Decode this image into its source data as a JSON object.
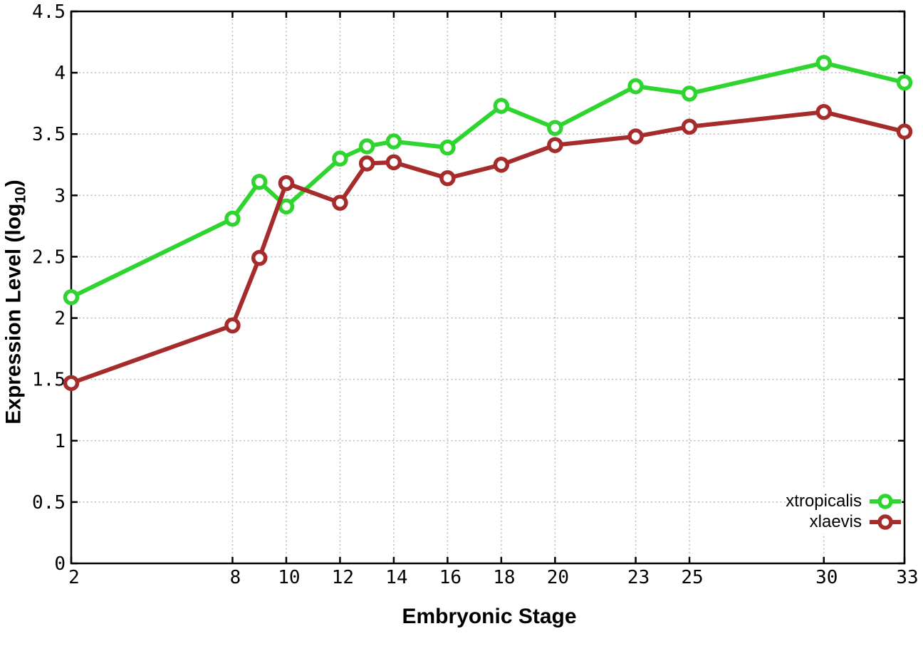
{
  "chart_data": {
    "type": "line",
    "title": "",
    "xlabel": "Embryonic Stage",
    "ylabel": {
      "prefix": "Expression Level (log",
      "sub": "10",
      "suffix": ")"
    },
    "xlim": [
      2,
      33
    ],
    "ylim": [
      0,
      4.5
    ],
    "xticks": [
      2,
      8,
      10,
      12,
      14,
      16,
      18,
      20,
      23,
      25,
      30,
      33
    ],
    "yticks": [
      0,
      0.5,
      1,
      1.5,
      2,
      2.5,
      3,
      3.5,
      4,
      4.5
    ],
    "grid": true,
    "legend_position": "bottom-right",
    "x": [
      2,
      8,
      9,
      10,
      12,
      13,
      14,
      16,
      18,
      20,
      23,
      25,
      30,
      33
    ],
    "series": [
      {
        "name": "xtropicalis",
        "color": "#2FD52F",
        "values": [
          2.17,
          2.81,
          3.11,
          2.91,
          3.3,
          3.4,
          3.44,
          3.39,
          3.73,
          3.55,
          3.89,
          3.83,
          4.08,
          3.92
        ]
      },
      {
        "name": "xlaevis",
        "color": "#A62C2C",
        "values": [
          1.47,
          1.94,
          2.49,
          3.1,
          2.94,
          3.26,
          3.27,
          3.14,
          3.25,
          3.41,
          3.48,
          3.56,
          3.68,
          3.52
        ]
      }
    ],
    "colors": {
      "axis": "#000000",
      "grid": "#bbbbbb"
    }
  }
}
